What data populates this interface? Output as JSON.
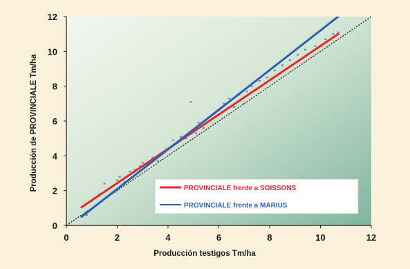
{
  "chart_data": {
    "type": "scatter",
    "xlabel": "Producción testigos Tm/ha",
    "ylabel": "Producción de PROVINCIALE Tm/ha",
    "xlim": [
      0,
      12
    ],
    "ylim": [
      0,
      12
    ],
    "xticks": [
      "0",
      "2",
      "4",
      "6",
      "8",
      "10",
      "12"
    ],
    "yticks": [
      "0",
      "2",
      "4",
      "6",
      "8",
      "10",
      "12"
    ],
    "grid": false,
    "legend_position": "bottom-right",
    "colors": {
      "soissons": "#e8262b",
      "marius": "#2a5fb8",
      "reference": "#1a1a1a",
      "points": "#2f6cc0"
    },
    "series": [
      {
        "name": "PROVINCIALE frente a SOISSONS",
        "kind": "regression-line",
        "x": [
          0.6,
          10.7
        ],
        "y": [
          1.05,
          11.0
        ]
      },
      {
        "name": "PROVINCIALE frente a MARIUS",
        "kind": "regression-line",
        "x": [
          0.6,
          10.7
        ],
        "y": [
          0.5,
          12.0
        ]
      },
      {
        "kind": "reference-line",
        "x": [
          0,
          12
        ],
        "y": [
          0,
          12
        ]
      },
      {
        "kind": "points",
        "x": [
          0.8,
          1.0,
          1.3,
          1.5,
          1.8,
          2.0,
          2.1,
          2.3,
          2.5,
          2.7,
          2.9,
          3.0,
          3.2,
          3.4,
          3.6,
          3.8,
          4.0,
          4.2,
          4.5,
          4.7,
          4.9,
          5.1,
          5.2,
          5.4,
          5.6,
          5.8,
          6.0,
          6.2,
          6.4,
          6.6,
          6.8,
          7.0,
          7.1,
          7.3,
          7.6,
          7.9,
          8.2,
          8.5,
          8.8,
          9.1,
          9.4,
          9.8,
          10.2,
          10.5,
          10.7
        ],
        "y": [
          0.6,
          1.4,
          1.8,
          2.4,
          1.9,
          2.6,
          2.8,
          2.5,
          3.1,
          3.2,
          3.4,
          3.6,
          3.5,
          3.9,
          3.7,
          4.2,
          4.4,
          4.9,
          5.1,
          5.0,
          7.1,
          5.3,
          5.9,
          5.6,
          6.2,
          6.4,
          6.6,
          7.0,
          7.3,
          6.8,
          7.5,
          7.0,
          7.7,
          8.0,
          8.3,
          8.5,
          8.9,
          9.2,
          9.5,
          9.8,
          10.1,
          10.3,
          10.7,
          11.0,
          11.1
        ]
      }
    ]
  }
}
